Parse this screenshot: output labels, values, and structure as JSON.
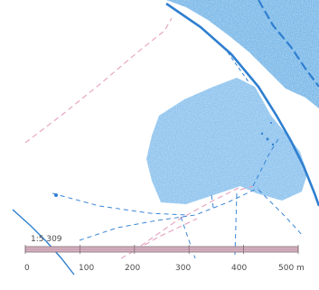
{
  "map": {
    "sheet_label": "1:5 309",
    "scale_bar": {
      "ticks": [
        "0",
        "100",
        "200",
        "300",
        "400",
        "500 m"
      ]
    },
    "colors": {
      "water_fill": "#4a9fe0",
      "line_blue": "#2f7fd0",
      "road_pink": "#e7a7c4",
      "scale_bar_fill": "#d9b2c2"
    }
  }
}
